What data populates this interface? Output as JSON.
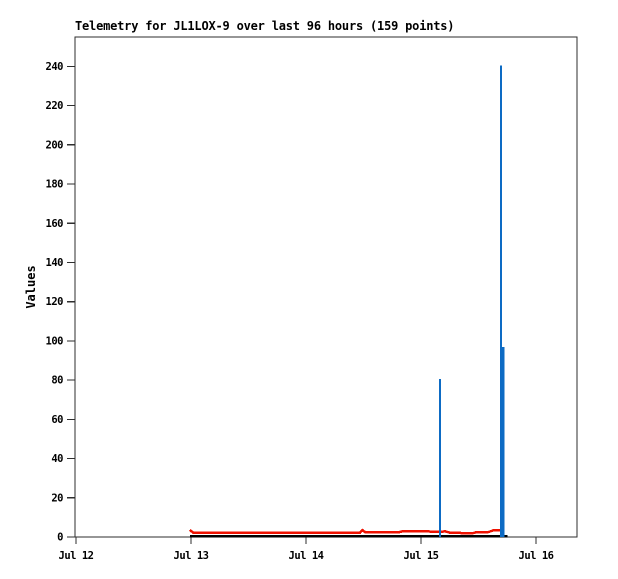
{
  "chart_data": {
    "type": "line",
    "title": "Telemetry for JL1LOX-9 over last 96 hours (159 points)",
    "xlabel": "",
    "ylabel": "Values",
    "grid": false,
    "legend_position": "none",
    "frame_color": "#2e2e2e",
    "tick_label_color": "#000000",
    "x_ticks": [
      {
        "day": 0,
        "label": "Jul 12"
      },
      {
        "day": 1,
        "label": "Jul 13"
      },
      {
        "day": 2,
        "label": "Jul 14"
      },
      {
        "day": 3,
        "label": "Jul 15"
      },
      {
        "day": 4,
        "label": "Jul 16"
      }
    ],
    "y_ticks": [
      0,
      20,
      40,
      60,
      80,
      100,
      120,
      140,
      160,
      180,
      200,
      220,
      240
    ],
    "ylim": [
      0,
      255
    ],
    "xlim_days": [
      -0.01,
      4.36
    ],
    "series": [
      {
        "name": "black-baseline-series",
        "color": "#000000",
        "stroke_width": 2.5,
        "points": [
          [
            0.99,
            0.3
          ],
          [
            3.75,
            0.3
          ]
        ]
      },
      {
        "name": "red-telemetry-series",
        "color": "#ee1100",
        "stroke_width": 2.5,
        "points": [
          [
            0.99,
            3.6
          ],
          [
            1.02,
            2.2
          ],
          [
            2.47,
            2.2
          ],
          [
            2.49,
            3.5
          ],
          [
            2.52,
            2.3
          ],
          [
            2.8,
            2.3
          ],
          [
            2.84,
            2.9
          ],
          [
            3.06,
            2.9
          ],
          [
            3.1,
            2.6
          ],
          [
            3.17,
            2.6
          ],
          [
            3.21,
            2.9
          ],
          [
            3.25,
            2.2
          ],
          [
            3.33,
            2.2
          ],
          [
            3.37,
            1.8
          ],
          [
            3.44,
            1.8
          ],
          [
            3.48,
            2.4
          ],
          [
            3.58,
            2.4
          ],
          [
            3.63,
            3.4
          ],
          [
            3.71,
            3.4
          ]
        ]
      }
    ],
    "spikes": {
      "name": "blue-spike-series",
      "color": "#0d6bc4",
      "stroke_width": 2.2,
      "points": [
        [
          3.165,
          80.5
        ],
        [
          3.695,
          240.5
        ],
        [
          3.715,
          97
        ]
      ]
    }
  }
}
